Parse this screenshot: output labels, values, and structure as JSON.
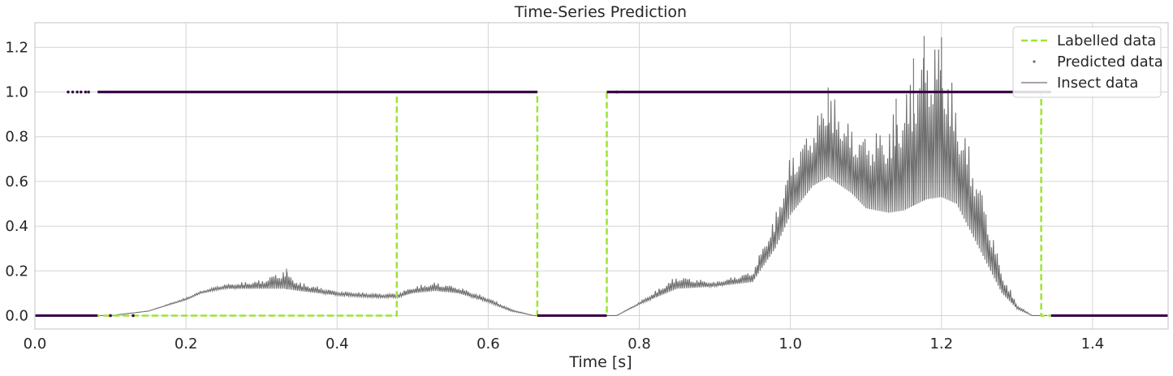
{
  "chart_data": {
    "type": "line",
    "title": "Time-Series Prediction",
    "xlabel": "Time [s]",
    "ylabel": "",
    "xlim": [
      0.0,
      1.5
    ],
    "ylim": [
      -0.06,
      1.31
    ],
    "xticks": [
      0.0,
      0.2,
      0.4,
      0.6,
      0.8,
      1.0,
      1.2,
      1.4
    ],
    "xtick_labels": [
      "0.0",
      "0.2",
      "0.4",
      "0.6",
      "0.8",
      "1.0",
      "1.2",
      "1.4"
    ],
    "yticks": [
      0.0,
      0.2,
      0.4,
      0.6,
      0.8,
      1.0,
      1.2
    ],
    "ytick_labels": [
      "0.0",
      "0.2",
      "0.4",
      "0.6",
      "0.8",
      "1.0",
      "1.2"
    ],
    "grid": true,
    "legend_position": "top-right",
    "series": [
      {
        "name": "Labelled data",
        "style": "dashed",
        "color": "#9de532",
        "x": [
          0.0,
          0.479,
          0.479,
          0.665,
          0.665,
          0.757,
          0.757,
          1.332,
          1.332,
          1.5
        ],
        "y": [
          0,
          0,
          1,
          1,
          0,
          0,
          1,
          1,
          0,
          0
        ]
      },
      {
        "name": "Predicted data",
        "style": "points",
        "color": "#3a0a45",
        "x": [
          0.0,
          0.083,
          0.083,
          0.665,
          0.665,
          0.757,
          0.757,
          1.345,
          1.345,
          1.5
        ],
        "y": [
          0,
          0,
          1,
          1,
          0,
          0,
          1,
          1,
          0,
          0
        ],
        "isolated_points": [
          [
            0.044,
            1.0
          ],
          [
            0.05,
            1.0
          ],
          [
            0.056,
            1.0
          ],
          [
            0.061,
            1.0
          ],
          [
            0.067,
            1.0
          ],
          [
            0.071,
            1.0
          ],
          [
            0.1,
            0.0
          ],
          [
            0.13,
            0.0
          ],
          [
            0.77,
            1.0
          ]
        ]
      },
      {
        "name": "Insect data",
        "style": "line",
        "color": "#6e6e6e",
        "envelope_x": [
          0.08,
          0.1,
          0.15,
          0.2,
          0.22,
          0.25,
          0.3,
          0.33,
          0.35,
          0.4,
          0.45,
          0.48,
          0.5,
          0.53,
          0.56,
          0.6,
          0.63,
          0.66,
          0.7,
          0.75,
          0.77,
          0.8,
          0.85,
          0.9,
          0.95,
          0.98,
          1.0,
          1.03,
          1.05,
          1.08,
          1.1,
          1.13,
          1.15,
          1.18,
          1.2,
          1.22,
          1.25,
          1.28,
          1.3,
          1.32,
          1.34
        ],
        "envelope_low": [
          0.0,
          0.0,
          0.02,
          0.07,
          0.1,
          0.12,
          0.12,
          0.12,
          0.11,
          0.09,
          0.08,
          0.08,
          0.1,
          0.11,
          0.1,
          0.06,
          0.02,
          0.0,
          0.0,
          0.0,
          0.0,
          0.05,
          0.12,
          0.13,
          0.15,
          0.3,
          0.45,
          0.58,
          0.62,
          0.55,
          0.48,
          0.46,
          0.47,
          0.52,
          0.53,
          0.5,
          0.3,
          0.1,
          0.03,
          0.0,
          0.0
        ],
        "envelope_high": [
          0.0,
          0.0,
          0.02,
          0.08,
          0.11,
          0.14,
          0.16,
          0.21,
          0.15,
          0.11,
          0.1,
          0.1,
          0.13,
          0.15,
          0.13,
          0.08,
          0.03,
          0.0,
          0.0,
          0.0,
          0.0,
          0.06,
          0.18,
          0.15,
          0.2,
          0.45,
          0.72,
          0.86,
          1.02,
          0.85,
          0.82,
          0.86,
          0.99,
          1.25,
          1.25,
          0.95,
          0.62,
          0.2,
          0.05,
          0.0,
          0.0
        ],
        "notable_spikes": [
          [
            0.333,
            0.21
          ],
          [
            1.05,
            1.02
          ],
          [
            1.177,
            1.25
          ],
          [
            1.2,
            1.245
          ],
          [
            1.163,
            1.15
          ],
          [
            1.14,
            0.97
          ]
        ]
      }
    ]
  }
}
